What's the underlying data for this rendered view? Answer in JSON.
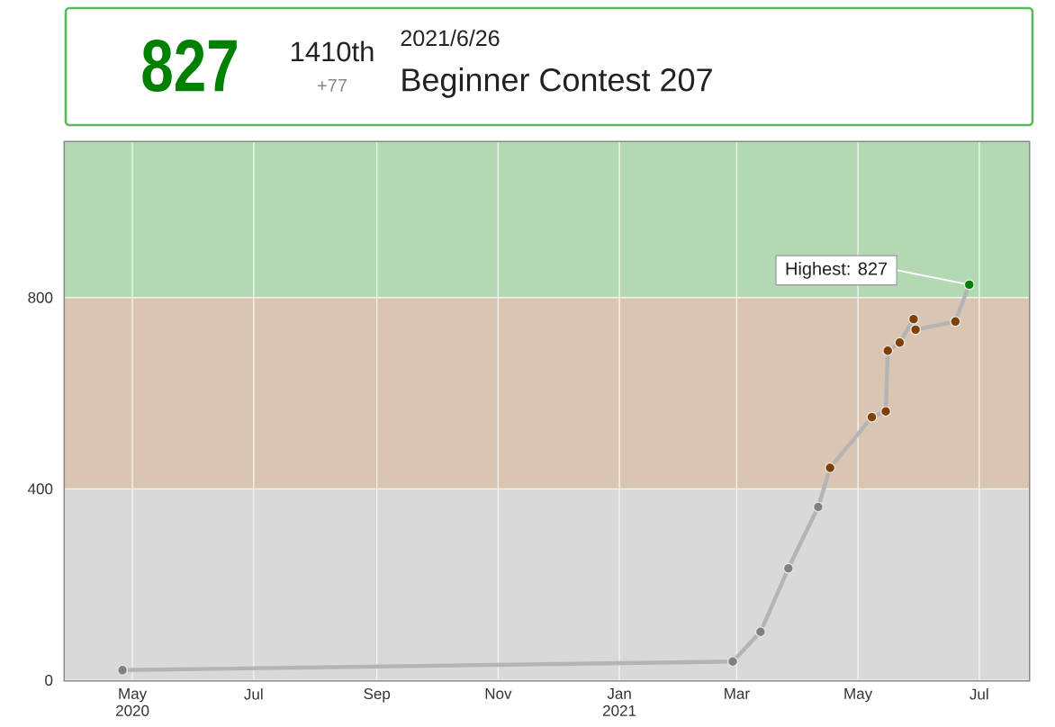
{
  "chart_data": {
    "type": "line",
    "title": "Beginner Contest 207",
    "subtitle": "2021/6/26",
    "annotations": [
      "827",
      "1410th",
      "+77",
      {
        "text": "Highest: 827",
        "x": "2021-06-26",
        "y": 827
      }
    ],
    "x": [
      "2020-04-26",
      "2021-02-27",
      "2021-03-13",
      "2021-03-27",
      "2021-04-11",
      "2021-04-17",
      "2021-05-08",
      "2021-05-15",
      "2021-05-16",
      "2021-05-22",
      "2021-05-29",
      "2021-05-30",
      "2021-06-19",
      "2021-06-26"
    ],
    "series": [
      {
        "color": "#b4b4b4",
        "colors": [
          "#808080",
          "#808080",
          "#808080",
          "#808080",
          "#808080",
          "#804000",
          "#804000",
          "#804000",
          "#804000",
          "#804000",
          "#804000",
          "#804000",
          "#804000",
          "#008000"
        ],
        "values": [
          21,
          39,
          101,
          234,
          362,
          444,
          550,
          562,
          689,
          706,
          755,
          733,
          750,
          827
        ]
      }
    ],
    "xlim": [
      "2020-03-28",
      "2021-07-26"
    ],
    "xticks": [
      {
        "value": "2020-05-01",
        "label": "May 2020"
      },
      {
        "value": "2020-07-01",
        "label": "Jul"
      },
      {
        "value": "2020-09-01",
        "label": "Sep"
      },
      {
        "value": "2020-11-01",
        "label": "Nov"
      },
      {
        "value": "2021-01-01",
        "label": "Jan 2021"
      },
      {
        "value": "2021-03-01",
        "label": "Mar"
      },
      {
        "value": "2021-05-01",
        "label": "May"
      },
      {
        "value": "2021-07-01",
        "label": "Jul"
      }
    ],
    "ylim": [
      0,
      1125
    ],
    "yticks": [
      0,
      400,
      800
    ],
    "bands": [
      {
        "axis": "y",
        "from": 0,
        "to": 400,
        "color": "#d9d9d9"
      },
      {
        "axis": "y",
        "from": 400,
        "to": 800,
        "color": "#d9c5b2"
      },
      {
        "axis": "y",
        "from": 800,
        "to": 1125,
        "color": "#b2d9b2"
      }
    ],
    "grid": true,
    "marker": "circle",
    "line_style": "solid"
  }
}
